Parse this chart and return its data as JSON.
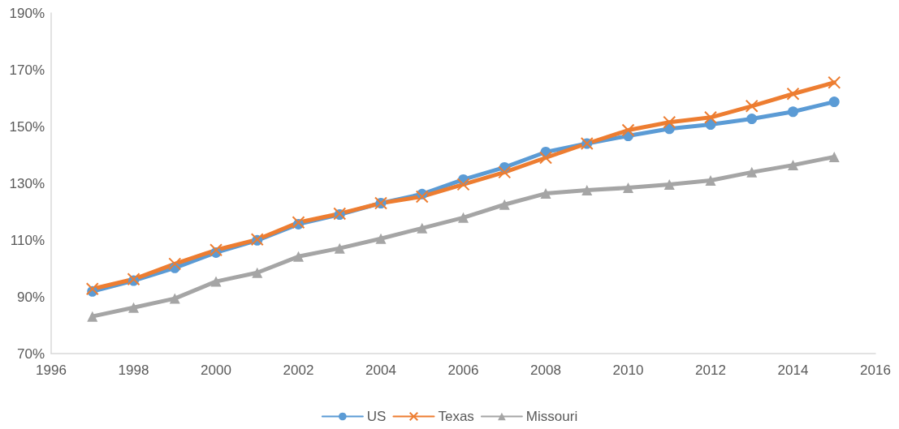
{
  "chart_data": {
    "type": "line",
    "x": [
      1997,
      1998,
      1999,
      2000,
      2001,
      2002,
      2003,
      2004,
      2005,
      2006,
      2007,
      2008,
      2009,
      2010,
      2011,
      2012,
      2013,
      2014,
      2015
    ],
    "series": [
      {
        "name": "US",
        "color": "#5b9bd5",
        "marker": "circle",
        "values": [
          91.9,
          95.7,
          100.2,
          105.6,
          109.9,
          115.6,
          119,
          123,
          126.2,
          131.3,
          135.6,
          141,
          144,
          146.7,
          149.2,
          150.7,
          152.7,
          155.2,
          158.7
        ]
      },
      {
        "name": "Texas",
        "color": "#ed7d31",
        "marker": "cross",
        "values": [
          92.8,
          96.2,
          101.6,
          106.5,
          110.2,
          116.2,
          119.3,
          123,
          125.3,
          129.6,
          133.9,
          139,
          144,
          148.7,
          151.5,
          153.2,
          157.2,
          161.5,
          165.5
        ]
      },
      {
        "name": "Missouri",
        "color": "#a5a5a5",
        "marker": "triangle",
        "values": [
          83.1,
          86.2,
          89.4,
          95.4,
          98.5,
          104.2,
          107.1,
          110.5,
          114.2,
          117.9,
          122.5,
          126.4,
          127.6,
          128.4,
          129.6,
          131,
          133.9,
          136.4,
          139.3
        ]
      }
    ],
    "xlim": [
      1996,
      2016
    ],
    "xticks": [
      1996,
      1998,
      2000,
      2002,
      2004,
      2006,
      2008,
      2010,
      2012,
      2014,
      2016
    ],
    "ylim": [
      70,
      190
    ],
    "yticks": [
      {
        "value": 70,
        "label": "70%"
      },
      {
        "value": 90,
        "label": "90%"
      },
      {
        "value": 110,
        "label": "110%"
      },
      {
        "value": 130,
        "label": "130%"
      },
      {
        "value": 150,
        "label": "150%"
      },
      {
        "value": 170,
        "label": "170%"
      },
      {
        "value": 190,
        "label": "190%"
      }
    ],
    "grid": false,
    "legend": "bottom",
    "line_style": "solid"
  }
}
